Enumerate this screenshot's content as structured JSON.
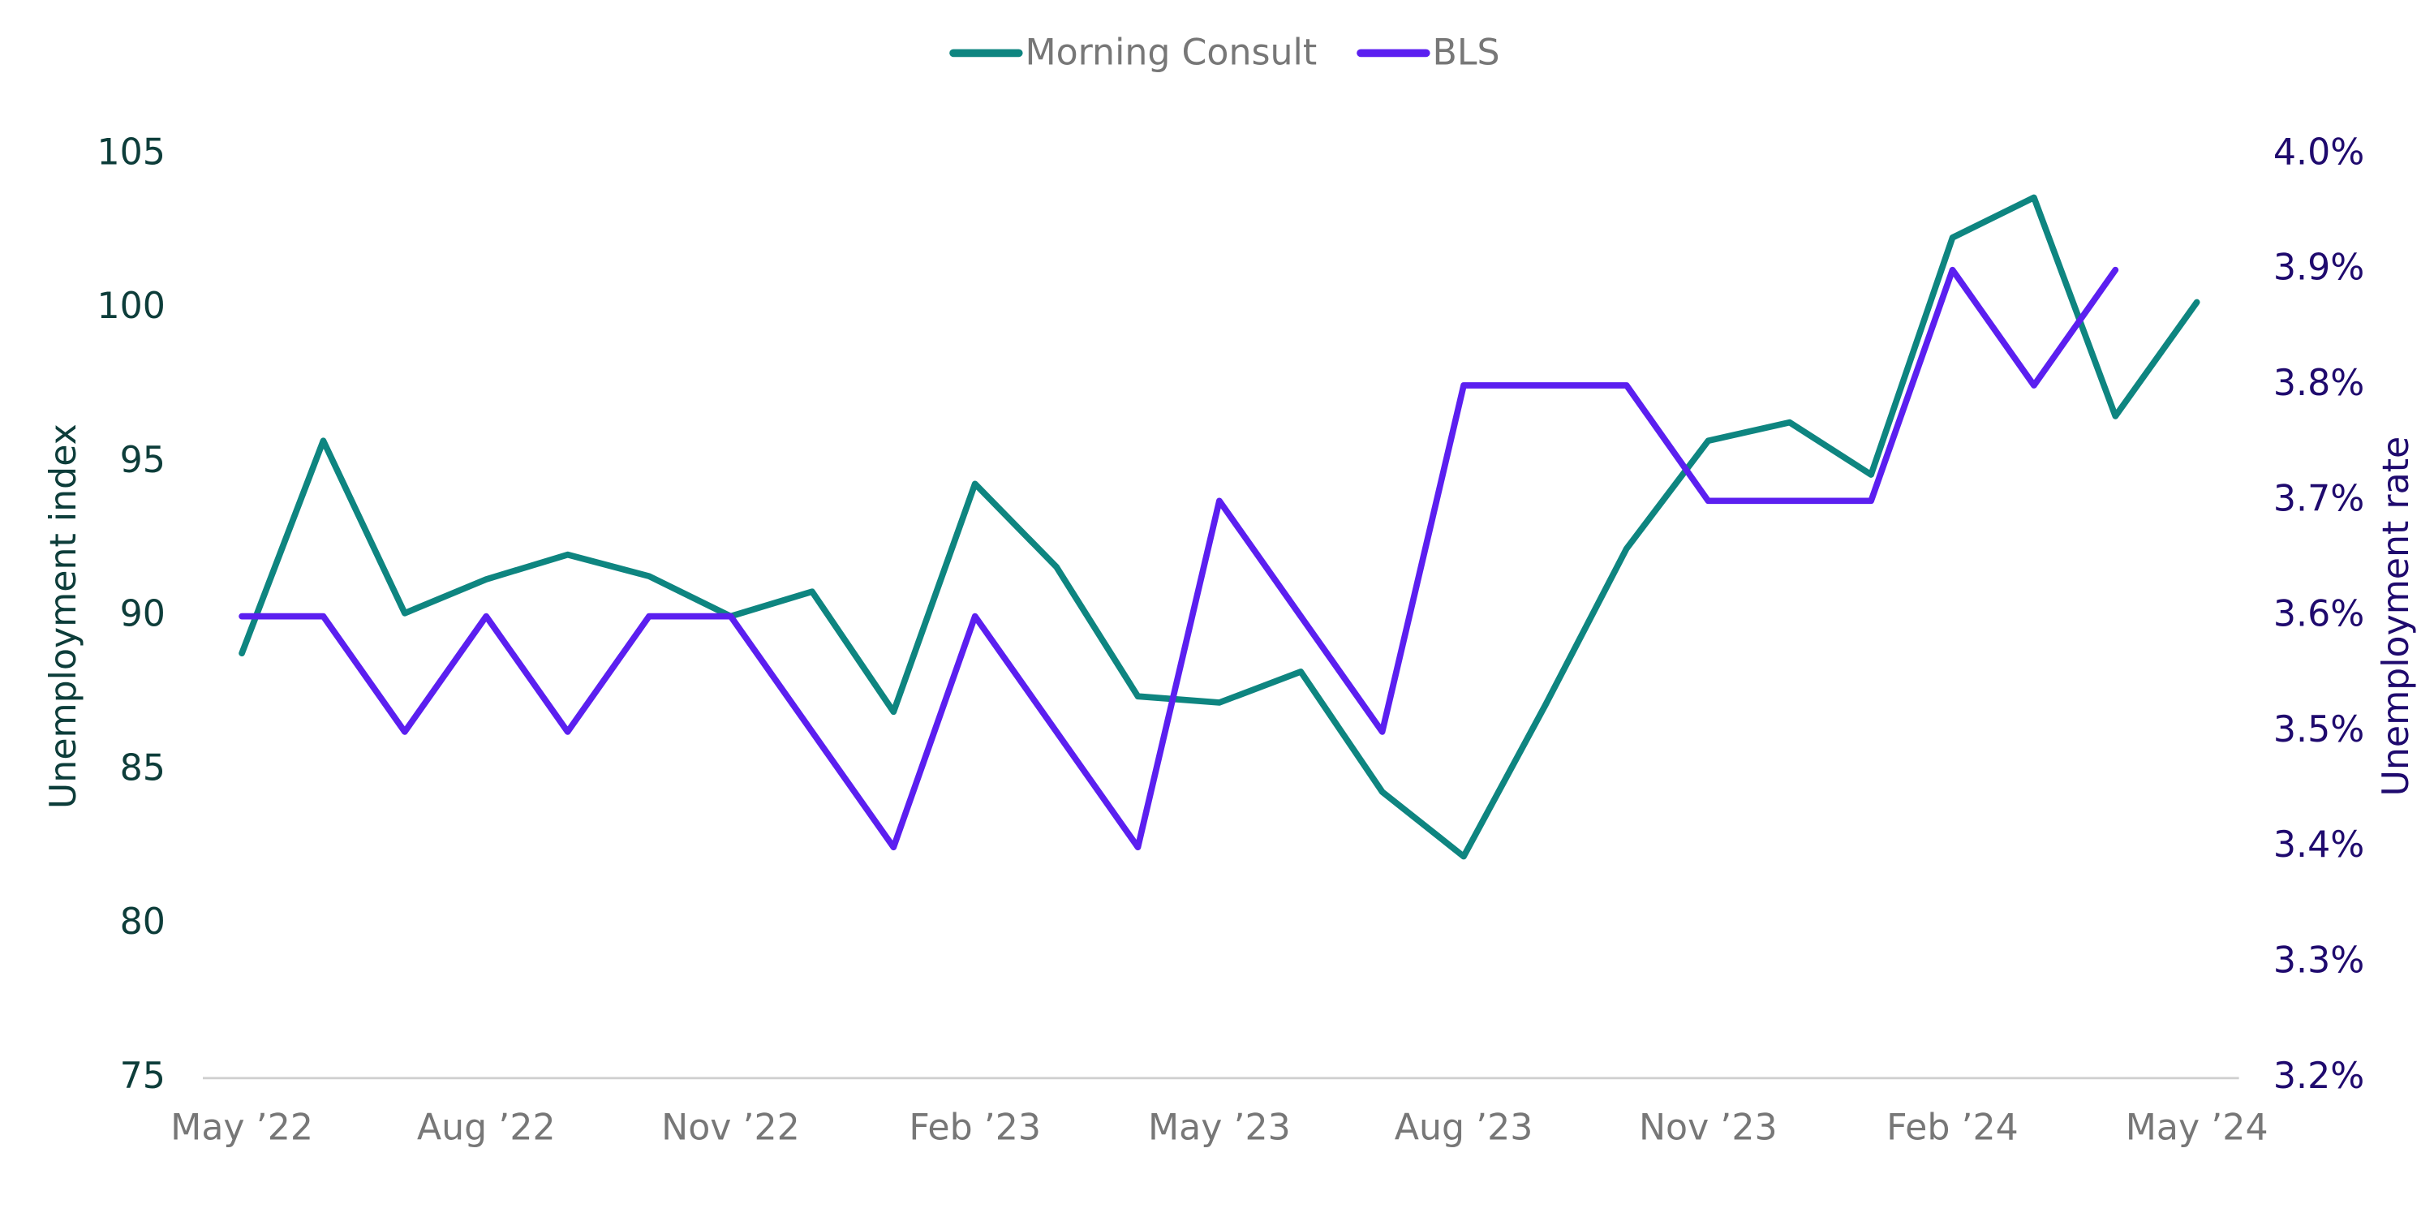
{
  "chart_data": {
    "type": "line",
    "categories": [
      "May ’22",
      null,
      null,
      "Aug ’22",
      null,
      null,
      "Nov ’22",
      null,
      null,
      "Feb ’23",
      null,
      null,
      "May ’23",
      null,
      null,
      "Aug ’23",
      null,
      null,
      "Nov ’23",
      null,
      null,
      "Feb ’24",
      null,
      null,
      "May ’24"
    ],
    "series": [
      {
        "name": "Morning Consult",
        "color": "#0e8580",
        "values": [
          88.8,
          95.7,
          90.1,
          91.2,
          92.0,
          91.3,
          90.0,
          90.8,
          86.9,
          94.3,
          91.6,
          87.4,
          87.2,
          88.2,
          84.3,
          82.2,
          87.1,
          92.2,
          95.7,
          96.3,
          94.6,
          102.3,
          103.6,
          96.5,
          100.2
        ]
      },
      {
        "name": "BLS",
        "color": "#5b1ff0",
        "axis": "y2",
        "values": [
          3.6,
          3.6,
          3.5,
          3.6,
          3.5,
          3.6,
          3.6,
          3.5,
          3.4,
          3.6,
          3.5,
          3.4,
          3.7,
          3.6,
          3.5,
          3.8,
          3.8,
          3.8,
          3.7,
          3.7,
          3.7,
          3.9,
          3.8,
          3.9,
          null
        ]
      }
    ],
    "ylabel": "Unemployment index",
    "y2label": "Unemployment rate",
    "ylim": [
      75,
      105
    ],
    "yticks": [
      75,
      80,
      85,
      90,
      95,
      100,
      105
    ],
    "y2lim": [
      3.2,
      4.0
    ],
    "y2ticks": [
      {
        "value": 3.2,
        "label": "3.2%"
      },
      {
        "value": 3.3,
        "label": "3.3%"
      },
      {
        "value": 3.4,
        "label": "3.4%"
      },
      {
        "value": 3.5,
        "label": "3.5%"
      },
      {
        "value": 3.6,
        "label": "3.6%"
      },
      {
        "value": 3.7,
        "label": "3.7%"
      },
      {
        "value": 3.8,
        "label": "3.8%"
      },
      {
        "value": 3.9,
        "label": "3.9%"
      },
      {
        "value": 4.0,
        "label": "4.0%"
      }
    ],
    "legend": "top",
    "grid": false
  }
}
